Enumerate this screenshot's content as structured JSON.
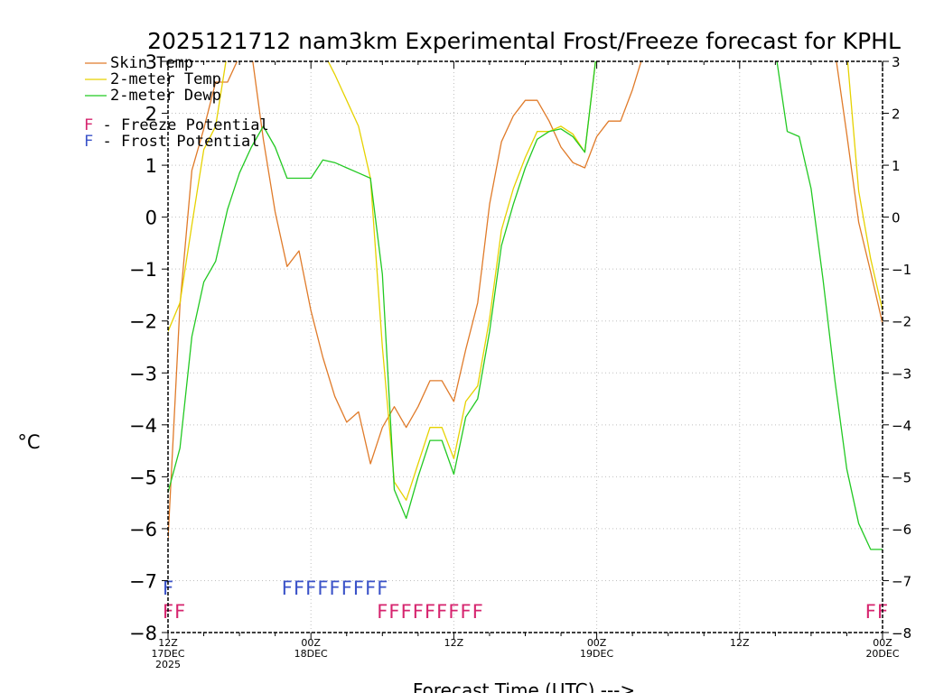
{
  "chart_data": {
    "type": "line",
    "title": "2025121712 nam3km Experimental Frost/Freeze forecast for KPHL",
    "ylabel": "°C",
    "xlabel": "Forecast Time (UTC) --->",
    "ylim": [
      -8,
      3
    ],
    "xlim": [
      0,
      60
    ],
    "y_ticks": [
      -8,
      -7,
      -6,
      -5,
      -4,
      -3,
      -2,
      -1,
      0,
      1,
      2,
      3
    ],
    "y_tick_labels": [
      "−8",
      "−7",
      "−6",
      "−5",
      "−4",
      "−3",
      "−2",
      "−1",
      "0",
      "1",
      "2",
      "3"
    ],
    "x_ticks": [
      {
        "hour": 0,
        "lines": [
          "12Z",
          "17DEC",
          "2025"
        ]
      },
      {
        "hour": 12,
        "lines": [
          "00Z",
          "18DEC"
        ]
      },
      {
        "hour": 24,
        "lines": [
          "12Z"
        ]
      },
      {
        "hour": 36,
        "lines": [
          "00Z",
          "19DEC"
        ]
      },
      {
        "hour": 48,
        "lines": [
          "12Z"
        ]
      },
      {
        "hour": 60,
        "lines": [
          "00Z",
          "20DEC"
        ]
      }
    ],
    "series": [
      {
        "name": "Skin Temp",
        "color": "#e07b2a",
        "points": [
          [
            0,
            -6.2
          ],
          [
            1,
            -1.7
          ],
          [
            2,
            0.9
          ],
          [
            3,
            1.7
          ],
          [
            4,
            2.6
          ],
          [
            5,
            2.6
          ],
          [
            6,
            3.1
          ],
          [
            7,
            3.2
          ],
          [
            8,
            1.5
          ],
          [
            9,
            0.1
          ],
          [
            10,
            -0.95
          ],
          [
            11,
            -0.65
          ],
          [
            12,
            -1.8
          ],
          [
            13,
            -2.7
          ],
          [
            14,
            -3.45
          ],
          [
            15,
            -3.95
          ],
          [
            16,
            -3.75
          ],
          [
            17,
            -4.75
          ],
          [
            18,
            -4.05
          ],
          [
            19,
            -3.65
          ],
          [
            20,
            -4.05
          ],
          [
            21,
            -3.65
          ],
          [
            22,
            -3.15
          ],
          [
            23,
            -3.15
          ],
          [
            24,
            -3.55
          ],
          [
            25,
            -2.55
          ],
          [
            26,
            -1.65
          ],
          [
            27,
            0.25
          ],
          [
            28,
            1.45
          ],
          [
            29,
            1.95
          ],
          [
            30,
            2.25
          ],
          [
            31,
            2.25
          ],
          [
            32,
            1.85
          ],
          [
            33,
            1.35
          ],
          [
            34,
            1.05
          ],
          [
            35,
            0.95
          ],
          [
            36,
            1.55
          ],
          [
            37,
            1.85
          ],
          [
            38,
            1.85
          ],
          [
            39,
            2.45
          ],
          [
            40,
            3.2
          ],
          [
            56,
            3.2
          ],
          [
            57,
            1.6
          ],
          [
            58,
            -0.1
          ],
          [
            59,
            -1.05
          ],
          [
            60,
            -2.05
          ]
        ]
      },
      {
        "name": "2-meter Temp",
        "color": "#e6d200",
        "points": [
          [
            0,
            -2.2
          ],
          [
            1,
            -1.65
          ],
          [
            2,
            -0.15
          ],
          [
            3,
            1.3
          ],
          [
            4,
            1.75
          ],
          [
            5,
            3.2
          ],
          [
            13,
            3.2
          ],
          [
            14,
            2.75
          ],
          [
            15,
            2.25
          ],
          [
            16,
            1.75
          ],
          [
            17,
            0.75
          ],
          [
            18,
            -2.5
          ],
          [
            19,
            -5.1
          ],
          [
            20,
            -5.45
          ],
          [
            21,
            -4.75
          ],
          [
            22,
            -4.05
          ],
          [
            23,
            -4.05
          ],
          [
            24,
            -4.65
          ],
          [
            25,
            -3.55
          ],
          [
            26,
            -3.25
          ],
          [
            27,
            -1.95
          ],
          [
            28,
            -0.25
          ],
          [
            29,
            0.55
          ],
          [
            30,
            1.15
          ],
          [
            31,
            1.65
          ],
          [
            32,
            1.65
          ],
          [
            33,
            1.75
          ],
          [
            34,
            1.6
          ],
          [
            35,
            1.25
          ],
          [
            36,
            3.2
          ],
          [
            57,
            3.2
          ],
          [
            58,
            0.5
          ],
          [
            59,
            -0.8
          ],
          [
            60,
            -1.8
          ]
        ]
      },
      {
        "name": "2-meter Dewp",
        "color": "#22c922",
        "points": [
          [
            0,
            -5.3
          ],
          [
            1,
            -4.45
          ],
          [
            2,
            -2.3
          ],
          [
            3,
            -1.25
          ],
          [
            4,
            -0.85
          ],
          [
            5,
            0.15
          ],
          [
            6,
            0.85
          ],
          [
            7,
            1.35
          ],
          [
            8,
            1.75
          ],
          [
            9,
            1.35
          ],
          [
            10,
            0.75
          ],
          [
            11,
            0.75
          ],
          [
            12,
            0.75
          ],
          [
            13,
            1.1
          ],
          [
            14,
            1.05
          ],
          [
            15,
            0.95
          ],
          [
            16,
            0.85
          ],
          [
            17,
            0.75
          ],
          [
            18,
            -1.1
          ],
          [
            19,
            -5.25
          ],
          [
            20,
            -5.8
          ],
          [
            21,
            -5.0
          ],
          [
            22,
            -4.3
          ],
          [
            23,
            -4.3
          ],
          [
            24,
            -4.95
          ],
          [
            25,
            -3.85
          ],
          [
            26,
            -3.5
          ],
          [
            27,
            -2.2
          ],
          [
            28,
            -0.55
          ],
          [
            29,
            0.25
          ],
          [
            30,
            0.95
          ],
          [
            31,
            1.5
          ],
          [
            32,
            1.65
          ],
          [
            33,
            1.7
          ],
          [
            34,
            1.55
          ],
          [
            35,
            1.25
          ],
          [
            36,
            3.2
          ],
          [
            51,
            3.2
          ],
          [
            52,
            1.65
          ],
          [
            53,
            1.55
          ],
          [
            54,
            0.55
          ],
          [
            55,
            -1.2
          ],
          [
            56,
            -3.15
          ],
          [
            57,
            -4.85
          ],
          [
            58,
            -5.9
          ],
          [
            59,
            -6.4
          ],
          [
            60,
            -6.4
          ]
        ]
      }
    ],
    "frost_potential": {
      "label": "F",
      "y": -7.1,
      "color": "#3a52c8",
      "hours": [
        0,
        10,
        11,
        12,
        13,
        14,
        15,
        16,
        17,
        18
      ]
    },
    "freeze_potential": {
      "label": "F",
      "y": -7.55,
      "color": "#d6246e",
      "hours": [
        0,
        1,
        18,
        19,
        20,
        21,
        22,
        23,
        24,
        25,
        26,
        59,
        60
      ]
    }
  },
  "legend": {
    "items": [
      {
        "label": "Skin Temp",
        "color": "#e07b2a"
      },
      {
        "label": "2-meter Temp",
        "color": "#e6d200"
      },
      {
        "label": "2-meter Dewp",
        "color": "#22c922"
      }
    ],
    "freeze_letter": "F",
    "freeze_text": " - Freeze Potential",
    "freeze_color": "#d6246e",
    "frost_letter": "F",
    "frost_text": " - Frost Potential",
    "frost_color": "#3a52c8"
  }
}
